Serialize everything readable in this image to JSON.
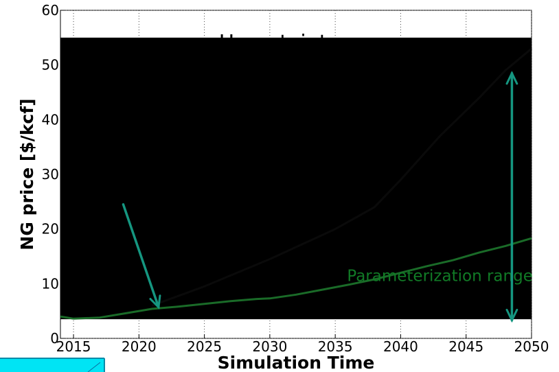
{
  "chart_data": {
    "type": "line",
    "title": "Uncertainty range",
    "xlabel": "Simulation Time",
    "ylabel": "NG price [$/kcf]",
    "xlim": [
      2014,
      2050
    ],
    "ylim": [
      0,
      60
    ],
    "x_ticks": [
      "2015",
      "2020",
      "2025",
      "2030",
      "2035",
      "2040",
      "2045",
      "2050"
    ],
    "y_ticks": [
      "0",
      "10",
      "20",
      "30",
      "40",
      "50",
      "60"
    ],
    "grid": true,
    "uncertainty_band": {
      "y_min": 3.5,
      "y_max": 55,
      "color": "#000000"
    },
    "series": [
      {
        "color": "#1a6b28",
        "x": [
          2014,
          2015,
          2017,
          2019,
          2021,
          2023,
          2025,
          2027,
          2029,
          2030,
          2032,
          2034,
          2036,
          2038,
          2040,
          2042,
          2044,
          2046,
          2048,
          2050
        ],
        "y": [
          4.0,
          3.6,
          3.8,
          4.6,
          5.4,
          5.8,
          6.3,
          6.8,
          7.2,
          7.3,
          8.0,
          8.9,
          9.8,
          10.8,
          12.0,
          13.2,
          14.3,
          15.7,
          16.9,
          18.3
        ]
      },
      {
        "color": "#0a0a0a",
        "x": [
          2021,
          2025,
          2030,
          2035,
          2038,
          2040,
          2043,
          2046,
          2048,
          2050
        ],
        "y": [
          6.0,
          9.5,
          14.5,
          20.0,
          24.0,
          29.0,
          37.0,
          44.0,
          49.0,
          53.0
        ]
      }
    ],
    "annotations": [
      {
        "text": "Parameterization range",
        "x": 2043,
        "y": 10.5,
        "color": "#117a26"
      }
    ],
    "arrows": [
      {
        "from": [
          2018.8,
          24.5
        ],
        "to": [
          2021.5,
          5.7
        ],
        "color": "#159680",
        "head": "end"
      },
      {
        "from": [
          2048.5,
          48.5
        ],
        "to": [
          2048.5,
          3.3
        ],
        "color": "#159680",
        "head": "both"
      }
    ]
  }
}
